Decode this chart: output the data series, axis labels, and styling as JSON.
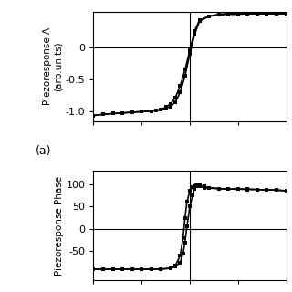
{
  "background_color": "#ffffff",
  "subplot_a": {
    "ylabel": "Piezoresponse A\n(arb.units)",
    "yticks": [
      -1.0,
      -0.5,
      0
    ],
    "ylim": [
      -1.15,
      0.55
    ],
    "xlim": [
      -10,
      10
    ],
    "vline_x": 0,
    "hline_y": 0,
    "curve1_x": [
      -10,
      -9,
      -8,
      -7,
      -6,
      -5,
      -4,
      -3.5,
      -3,
      -2.5,
      -2,
      -1.5,
      -1,
      -0.5,
      0,
      0.5,
      1,
      2,
      3,
      4,
      5,
      6,
      7,
      8,
      9,
      10
    ],
    "curve1_y": [
      -1.06,
      -1.04,
      -1.03,
      -1.02,
      -1.01,
      -1.0,
      -0.99,
      -0.98,
      -0.97,
      -0.93,
      -0.88,
      -0.78,
      -0.6,
      -0.35,
      -0.05,
      0.25,
      0.42,
      0.48,
      0.5,
      0.51,
      0.51,
      0.52,
      0.52,
      0.52,
      0.52,
      0.52
    ],
    "curve2_x": [
      -10,
      -9,
      -8,
      -7,
      -6,
      -5,
      -4,
      -3.5,
      -3,
      -2.5,
      -2,
      -1.5,
      -1,
      -0.5,
      0,
      0.5,
      1,
      2,
      3,
      4,
      5,
      6,
      7,
      8,
      9,
      10
    ],
    "curve2_y": [
      -1.06,
      -1.04,
      -1.03,
      -1.02,
      -1.01,
      -1.0,
      -0.99,
      -0.98,
      -0.97,
      -0.95,
      -0.92,
      -0.85,
      -0.7,
      -0.45,
      -0.1,
      0.2,
      0.4,
      0.48,
      0.51,
      0.52,
      0.52,
      0.52,
      0.52,
      0.52,
      0.52,
      0.52
    ],
    "label": "(a)"
  },
  "subplot_b": {
    "ylabel": "Piezoresponse Phase",
    "yticks": [
      -50,
      0,
      50,
      100
    ],
    "ylim": [
      -115,
      130
    ],
    "xlim": [
      -10,
      10
    ],
    "vline_x": 0,
    "hline_y": 0,
    "curve1_x": [
      -10,
      -9,
      -8,
      -7,
      -6,
      -5,
      -4,
      -3,
      -2,
      -1.5,
      -1,
      -0.7,
      -0.5,
      -0.3,
      0,
      0.3,
      0.5,
      0.7,
      1,
      1.5,
      2,
      3,
      4,
      5,
      6,
      7,
      8,
      9,
      10
    ],
    "curve1_y": [
      -90,
      -90,
      -90,
      -90,
      -90,
      -90,
      -90,
      -90,
      -88,
      -85,
      -75,
      -55,
      -30,
      5,
      50,
      75,
      90,
      96,
      98,
      95,
      92,
      90,
      89,
      89,
      89,
      88,
      87,
      87,
      85
    ],
    "curve2_x": [
      -10,
      -9,
      -8,
      -7,
      -6,
      -5,
      -4,
      -3,
      -2,
      -1.5,
      -1,
      -0.7,
      -0.5,
      -0.3,
      0,
      0.3,
      0.5,
      0.7,
      1,
      1.5,
      2,
      3,
      4,
      5,
      6,
      7,
      8,
      9,
      10
    ],
    "curve2_y": [
      -90,
      -90,
      -90,
      -90,
      -90,
      -90,
      -90,
      -90,
      -88,
      -82,
      -60,
      -20,
      25,
      60,
      85,
      93,
      96,
      97,
      95,
      92,
      91,
      90,
      89,
      89,
      88,
      88,
      87,
      87,
      85
    ]
  }
}
